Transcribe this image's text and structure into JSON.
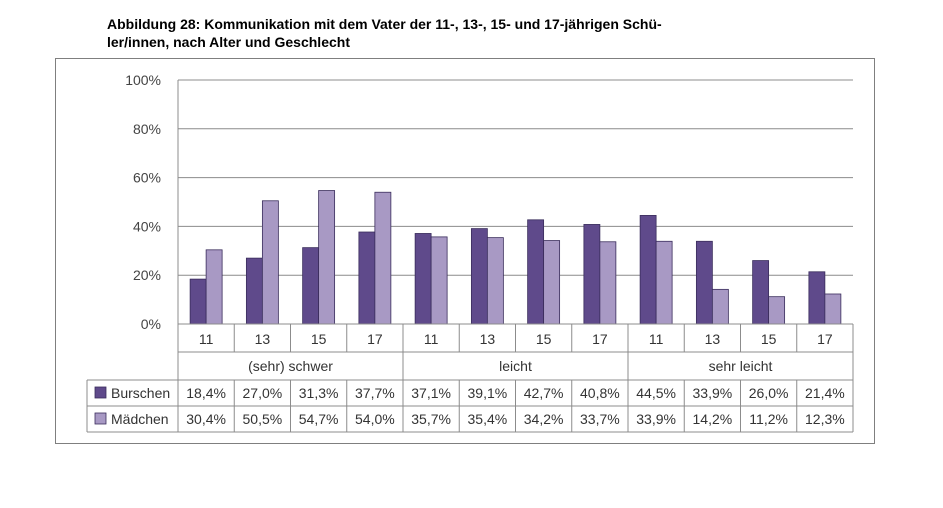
{
  "title": {
    "line1": "Abbildung 28: Kommunikation mit dem Vater der 11-, 13-, 15- und 17-jährigen Schü-",
    "line2": "ler/innen, nach Alter und Geschlecht"
  },
  "chart_data": {
    "type": "bar",
    "title": "Abbildung 28: Kommunikation mit dem Vater der 11-, 13-, 15- und 17-jährigen Schüler/innen, nach Alter und Geschlecht",
    "groups": [
      "(sehr) schwer",
      "leicht",
      "sehr leicht"
    ],
    "ages": [
      "11",
      "13",
      "15",
      "17"
    ],
    "yticks": [
      "0%",
      "20%",
      "40%",
      "60%",
      "80%",
      "100%"
    ],
    "ylim": [
      0,
      100
    ],
    "grid": true,
    "legend": "data-table-left",
    "series": [
      {
        "name": "Burschen",
        "color": "#5f4a8b",
        "values": [
          18.4,
          27.0,
          31.3,
          37.7,
          37.1,
          39.1,
          42.7,
          40.8,
          44.5,
          33.9,
          26.0,
          21.4
        ],
        "labels": [
          "18,4%",
          "27,0%",
          "31,3%",
          "37,7%",
          "37,1%",
          "39,1%",
          "42,7%",
          "40,8%",
          "44,5%",
          "33,9%",
          "26,0%",
          "21,4%"
        ]
      },
      {
        "name": "Mädchen",
        "color": "#a899c4",
        "values": [
          30.4,
          50.5,
          54.7,
          54.0,
          35.7,
          35.4,
          34.2,
          33.7,
          33.9,
          14.2,
          11.2,
          12.3
        ],
        "labels": [
          "30,4%",
          "50,5%",
          "54,7%",
          "54,0%",
          "35,7%",
          "35,4%",
          "34,2%",
          "33,7%",
          "33,9%",
          "14,2%",
          "11,2%",
          "12,3%"
        ]
      }
    ]
  }
}
